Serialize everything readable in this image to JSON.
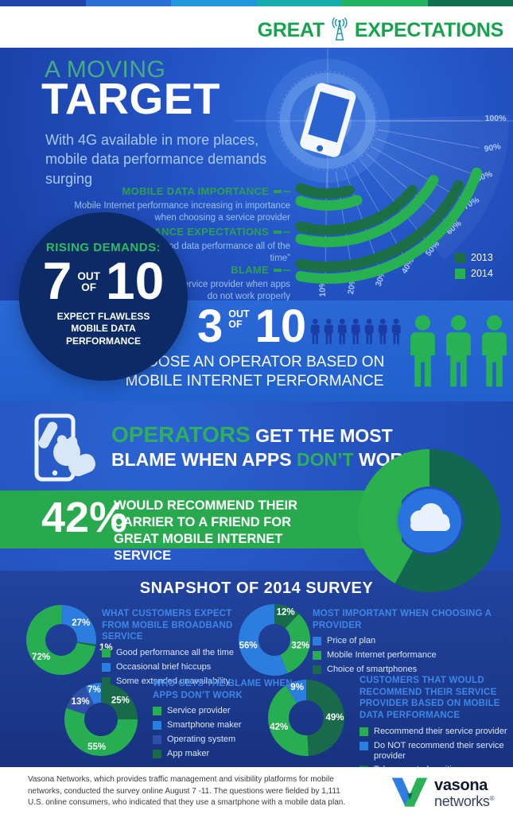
{
  "colors": {
    "stripe": [
      "#2345a9",
      "#2b6fd6",
      "#2397dd",
      "#16aeac",
      "#23b463",
      "#0f7150"
    ],
    "brand_green": "#17a24e",
    "tower_teal": "#1e9aa6",
    "green": "#28ae52",
    "dark_green": "#186a4b",
    "blue": "#2b7de0",
    "dark_blue": "#2f4fa8",
    "bar_2013": "#1c6f44",
    "bar_2014": "#28b151",
    "band_dark": "#11684f",
    "band_light": "#2cb04e",
    "band_green": "#28a94e",
    "badge_navy": "#0c2a66",
    "donut_hole_blue": "#2a72dd"
  },
  "header": {
    "brand_left": "GREAT",
    "brand_right": "EXPECTATIONS",
    "icon": "cell-tower-icon"
  },
  "hero": {
    "kicker": "A MOVING",
    "title": "TARGET",
    "subtitle": "With 4G available in more places, mobile data performance demands surging"
  },
  "badge": {
    "kicker": "RISING DEMANDS:",
    "numerator": "7",
    "connector_top": "OUT",
    "connector_bottom": "OF",
    "denominator": "10",
    "caption": "EXPECT FLAWLESS MOBILE DATA PERFORMANCE"
  },
  "stat": {
    "numerator": "3",
    "connector_top": "OUT",
    "connector_bottom": "OF",
    "denominator": "10",
    "caption": "CHOOSE AN OPERATOR BASED ON MOBILE INTERNET PERFORMANCE",
    "people_small": 7,
    "people_large": 3
  },
  "operators": {
    "line1_highlight": "OPERATORS",
    "line1_rest": " GET THE MOST",
    "line2_pre": "BLAME WHEN APPS ",
    "line2_highlight": "DON’T",
    "line2_post": " WORK"
  },
  "band": {
    "value": "42%",
    "text": "WOULD RECOMMEND THEIR CARRIER TO A FRIEND FOR GREAT MOBILE INTERNET SERVICE"
  },
  "snapshot": {
    "title": "SNAPSHOT OF 2014 SURVEY"
  },
  "footer": {
    "text": "Vasona Networks, which provides traffic management and visibility platforms for mobile networks, conducted the survey online August 7 -11. The questions were fielded by 1,111 U.S. online consumers, who indicated that they use a smartphone with a mobile data plan.",
    "logo_name": "vasona",
    "logo_suffix": "networks",
    "logo_reg": "®"
  },
  "chart_data": [
    {
      "type": "bar",
      "variant": "radial",
      "unit": "%",
      "axis_ticks": [
        10,
        20,
        30,
        40,
        50,
        60,
        70,
        80,
        90,
        100
      ],
      "legend_position": "right",
      "series": [
        {
          "name": "2013",
          "color_key": "bar_2013"
        },
        {
          "name": "2014",
          "color_key": "bar_2014"
        }
      ],
      "categories": [
        {
          "label": "MOBILE DATA IMPORTANCE",
          "description": "Mobile Internet performance increasing in importance when choosing a service provider",
          "values": {
            "2013": 28,
            "2014": 31
          }
        },
        {
          "label": "PERFORMANCE EXPECTATIONS",
          "description": "Expect “good data performance all of the time”",
          "values": {
            "2013": 61,
            "2014": 71
          }
        },
        {
          "label": "BLAME",
          "description": "Most blame their service provider when apps do not work properly",
          "values": {
            "2013": 74,
            "2014": 81
          }
        }
      ]
    },
    {
      "type": "pie",
      "variant": "donut",
      "title": "Would recommend their carrier",
      "slices": [
        {
          "label": "",
          "value": 58,
          "color": "band_dark",
          "pos": "none"
        },
        {
          "label": "42%",
          "value": 42,
          "color": "band_light",
          "pos": "none"
        }
      ]
    },
    {
      "type": "pie",
      "variant": "donut",
      "title": "WHAT CUSTOMERS EXPECT FROM MOBILE BROADBAND SERVICE",
      "slices": [
        {
          "label": "27%",
          "value": 27,
          "color": "blue",
          "pos": "in"
        },
        {
          "label": "1%",
          "value": 1,
          "color": "dark_green",
          "pos": "out"
        },
        {
          "label": "72%",
          "value": 72,
          "color": "green",
          "pos": "in"
        }
      ],
      "legend": [
        {
          "label": "Good performance all the time",
          "color": "green"
        },
        {
          "label": "Occasional brief hiccups",
          "color": "blue"
        },
        {
          "label": "Some extended unavailability",
          "color": "dark_green"
        }
      ]
    },
    {
      "type": "pie",
      "variant": "donut",
      "title": "MOST IMPORTANT WHEN CHOOSING A PROVIDER",
      "slices": [
        {
          "label": "12%",
          "value": 12,
          "color": "dark_green",
          "pos": "edge"
        },
        {
          "label": "32%",
          "value": 32,
          "color": "green",
          "pos": "in"
        },
        {
          "label": "56%",
          "value": 56,
          "color": "blue",
          "pos": "in"
        }
      ],
      "legend": [
        {
          "label": "Price of plan",
          "color": "blue"
        },
        {
          "label": "Mobile Internet performance",
          "color": "green"
        },
        {
          "label": "Choice of smartphones",
          "color": "dark_green"
        }
      ]
    },
    {
      "type": "pie",
      "variant": "donut",
      "title": "WHO GETS THE BLAME WHEN APPS DON’T WORK",
      "slices": [
        {
          "label": "25%",
          "value": 25,
          "color": "dark_green",
          "pos": "in"
        },
        {
          "label": "55%",
          "value": 55,
          "color": "green",
          "pos": "in"
        },
        {
          "label": "13%",
          "value": 13,
          "color": "dark_blue",
          "pos": "in"
        },
        {
          "label": "7%",
          "value": 7,
          "color": "blue",
          "pos": "edge"
        }
      ],
      "legend": [
        {
          "label": "Service provider",
          "color": "green"
        },
        {
          "label": "Smartphone maker",
          "color": "blue"
        },
        {
          "label": "Operating system",
          "color": "dark_blue"
        },
        {
          "label": "App maker",
          "color": "dark_green"
        }
      ]
    },
    {
      "type": "pie",
      "variant": "donut",
      "title": "CUSTOMERS THAT WOULD RECOMMEND THEIR SERVICE PROVIDER BASED ON MOBILE DATA PERFORMANCE",
      "slices": [
        {
          "label": "49%",
          "value": 49,
          "color": "dark_green",
          "pos": "in"
        },
        {
          "label": "42%",
          "value": 42,
          "color": "green",
          "pos": "in"
        },
        {
          "label": "9%",
          "value": 9,
          "color": "blue",
          "pos": "edge"
        }
      ],
      "legend": [
        {
          "label": "Recommend their service provider",
          "color": "green"
        },
        {
          "label": "Do NOT recommend their service provider",
          "color": "blue"
        },
        {
          "label": "Take a neutral position",
          "color": "dark_green"
        }
      ]
    }
  ]
}
